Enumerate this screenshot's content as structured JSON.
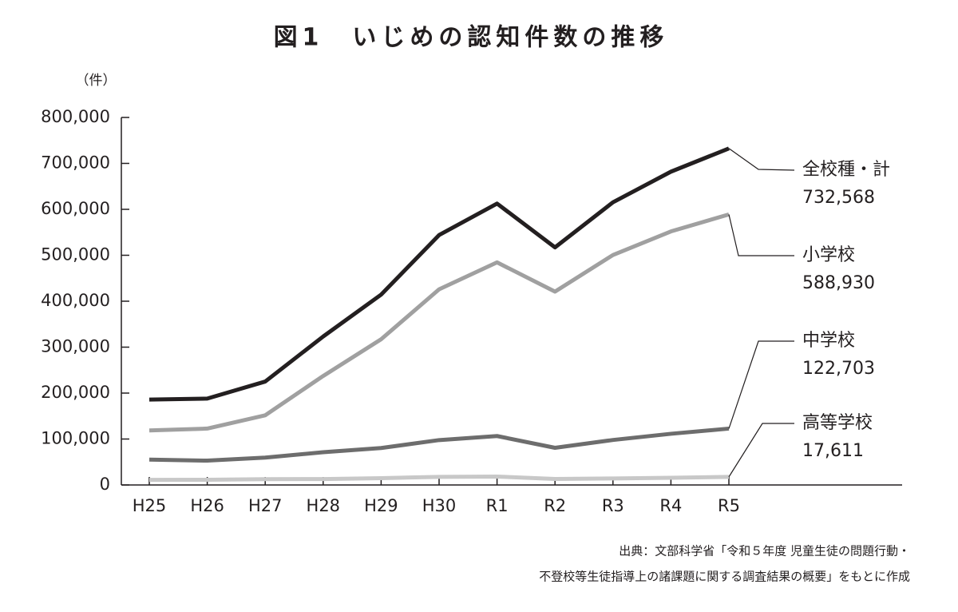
{
  "chart_data": {
    "type": "line",
    "title": "図1　いじめの認知件数の推移",
    "y_unit": "（件）",
    "source": [
      "出典：文部科学省「令和５年度 児童生徒の問題行動・",
      "不登校等生徒指導上の諸課題に関する調査結果の概要」をもとに作成"
    ],
    "categories": [
      "H25",
      "H26",
      "H27",
      "H28",
      "H29",
      "H30",
      "R1",
      "R2",
      "R3",
      "R4",
      "R5"
    ],
    "series": [
      {
        "name": "全校種・計",
        "color": "#231f20",
        "values": [
          185803,
          188072,
          225132,
          323143,
          414378,
          543933,
          612496,
          517163,
          615351,
          681948,
          732568
        ],
        "value_labels": [
          null,
          null,
          null,
          null,
          null,
          null,
          null,
          null,
          null,
          null,
          "732,568"
        ]
      },
      {
        "name": "小学校",
        "color": "#a0a0a0",
        "values": [
          118748,
          122734,
          151692,
          237256,
          317121,
          425844,
          484545,
          420897,
          500562,
          551944,
          588930
        ],
        "value_labels": [
          null,
          null,
          null,
          null,
          null,
          null,
          null,
          null,
          null,
          null,
          "588,930"
        ]
      },
      {
        "name": "中学校",
        "color": "#6d6d6d",
        "values": [
          55248,
          52971,
          59502,
          71309,
          80424,
          97704,
          106524,
          80877,
          97937,
          111404,
          122703
        ],
        "value_labels": [
          null,
          null,
          null,
          null,
          null,
          null,
          null,
          null,
          null,
          null,
          "122,703"
        ]
      },
      {
        "name": "高等学校",
        "color": "#c8c8c8",
        "values": [
          11039,
          11404,
          12664,
          12874,
          14789,
          17709,
          18352,
          13126,
          14157,
          15568,
          17611
        ],
        "value_labels": [
          null,
          null,
          null,
          null,
          null,
          null,
          null,
          null,
          null,
          null,
          "17,611"
        ]
      }
    ],
    "ylim": [
      0,
      800000
    ],
    "yticks": [
      0,
      {
        "value": 100000,
        "label": "100,000"
      },
      {
        "value": 200000,
        "label": "200,000"
      },
      {
        "value": 300000,
        "label": "300,000"
      },
      {
        "value": 400000,
        "label": "400,000"
      },
      {
        "value": 500000,
        "label": "500,000"
      },
      {
        "value": 600000,
        "label": "600,000"
      },
      {
        "value": 700000,
        "label": "700,000"
      },
      {
        "value": 800000,
        "label": "800,000"
      }
    ],
    "grid": false
  }
}
